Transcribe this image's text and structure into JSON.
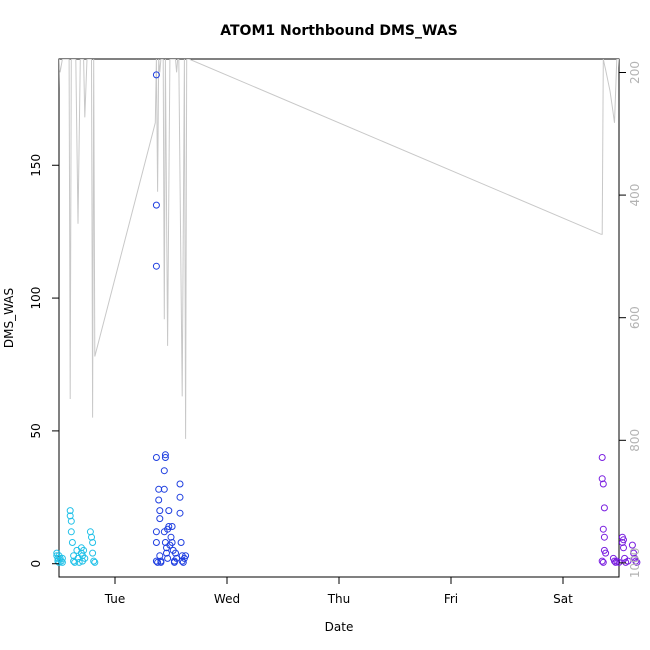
{
  "chart_data": {
    "type": "scatter",
    "title": "ATOM1 Northbound DMS_WAS",
    "xlabel": "Date",
    "ylabel": "DMS_WAS",
    "x_unit": "days",
    "xlim": [
      0.5,
      5.5
    ],
    "ylim": [
      -5,
      190
    ],
    "right_ylim": [
      1023,
      178
    ],
    "x_ticks": [
      {
        "pos": 1,
        "label": "Tue"
      },
      {
        "pos": 2,
        "label": "Wed"
      },
      {
        "pos": 3,
        "label": "Thu"
      },
      {
        "pos": 4,
        "label": "Fri"
      },
      {
        "pos": 5,
        "label": "Sat"
      }
    ],
    "y_ticks": [
      0,
      50,
      100,
      150
    ],
    "right_y_ticks": [
      200,
      400,
      600,
      800,
      1000
    ],
    "grid": false,
    "legend": "none",
    "series": [
      {
        "color": "#22c1e8",
        "points": [
          [
            0.48,
            4
          ],
          [
            0.48,
            3
          ],
          [
            0.49,
            2
          ],
          [
            0.49,
            1
          ],
          [
            0.5,
            0.5
          ],
          [
            0.5,
            3
          ],
          [
            0.51,
            2
          ],
          [
            0.52,
            1
          ],
          [
            0.53,
            0.5
          ],
          [
            0.53,
            2
          ],
          [
            0.6,
            20
          ],
          [
            0.6,
            18
          ],
          [
            0.61,
            16
          ],
          [
            0.61,
            12
          ],
          [
            0.62,
            8
          ],
          [
            0.63,
            3
          ],
          [
            0.63,
            1
          ],
          [
            0.64,
            0.5
          ],
          [
            0.66,
            5
          ],
          [
            0.67,
            2
          ],
          [
            0.68,
            0.5
          ],
          [
            0.7,
            6
          ],
          [
            0.7,
            4
          ],
          [
            0.71,
            3
          ],
          [
            0.71,
            1
          ],
          [
            0.72,
            5
          ],
          [
            0.73,
            2
          ],
          [
            0.78,
            12
          ],
          [
            0.79,
            10
          ],
          [
            0.8,
            8
          ],
          [
            0.8,
            4
          ],
          [
            0.81,
            1
          ],
          [
            0.82,
            0.5
          ]
        ]
      },
      {
        "color": "#1f3fe0",
        "points": [
          [
            1.37,
            184
          ],
          [
            1.37,
            135
          ],
          [
            1.37,
            112
          ],
          [
            1.37,
            40
          ],
          [
            1.37,
            12
          ],
          [
            1.37,
            8
          ],
          [
            1.37,
            1
          ],
          [
            1.38,
            0.5
          ],
          [
            1.39,
            28
          ],
          [
            1.39,
            24
          ],
          [
            1.4,
            20
          ],
          [
            1.4,
            17
          ],
          [
            1.4,
            3
          ],
          [
            1.41,
            0.5
          ],
          [
            1.41,
            1
          ],
          [
            1.45,
            40
          ],
          [
            1.45,
            41
          ],
          [
            1.44,
            35
          ],
          [
            1.44,
            28
          ],
          [
            1.44,
            12
          ],
          [
            1.45,
            8
          ],
          [
            1.46,
            6
          ],
          [
            1.46,
            4
          ],
          [
            1.47,
            2
          ],
          [
            1.47,
            13
          ],
          [
            1.48,
            20
          ],
          [
            1.48,
            14
          ],
          [
            1.49,
            7
          ],
          [
            1.5,
            10
          ],
          [
            1.51,
            14
          ],
          [
            1.51,
            8
          ],
          [
            1.52,
            5
          ],
          [
            1.53,
            1
          ],
          [
            1.53,
            0.5
          ],
          [
            1.54,
            4
          ],
          [
            1.55,
            2
          ],
          [
            1.58,
            30
          ],
          [
            1.58,
            25
          ],
          [
            1.58,
            19
          ],
          [
            1.59,
            8
          ],
          [
            1.6,
            3
          ],
          [
            1.6,
            1
          ],
          [
            1.61,
            0.5
          ],
          [
            1.62,
            2
          ],
          [
            1.63,
            3
          ]
        ]
      },
      {
        "color": "#7a1fe0",
        "points": [
          [
            5.35,
            40
          ],
          [
            5.35,
            32
          ],
          [
            5.36,
            30
          ],
          [
            5.37,
            21
          ],
          [
            5.36,
            13
          ],
          [
            5.37,
            10
          ],
          [
            5.37,
            5
          ],
          [
            5.38,
            4
          ],
          [
            5.35,
            1
          ],
          [
            5.36,
            0.5
          ],
          [
            5.45,
            2
          ],
          [
            5.46,
            1
          ],
          [
            5.47,
            0.5
          ],
          [
            5.48,
            1
          ],
          [
            5.5,
            0.5
          ],
          [
            5.53,
            10
          ],
          [
            5.53,
            8
          ],
          [
            5.54,
            9
          ],
          [
            5.54,
            6
          ],
          [
            5.55,
            2
          ],
          [
            5.56,
            0.5
          ],
          [
            5.58,
            1
          ],
          [
            5.62,
            7
          ],
          [
            5.63,
            4
          ],
          [
            5.64,
            2
          ],
          [
            5.65,
            1
          ],
          [
            5.66,
            0.5
          ]
        ]
      }
    ],
    "secondary_line": {
      "color": "#c8c8c8",
      "points": [
        [
          0.48,
          190
        ],
        [
          0.48,
          160
        ],
        [
          0.49,
          165
        ],
        [
          0.5,
          190
        ],
        [
          0.51,
          185
        ],
        [
          0.53,
          190
        ],
        [
          0.59,
          190
        ],
        [
          0.6,
          62
        ],
        [
          0.61,
          190
        ],
        [
          0.65,
          190
        ],
        [
          0.67,
          128
        ],
        [
          0.69,
          190
        ],
        [
          0.72,
          190
        ],
        [
          0.73,
          168
        ],
        [
          0.75,
          190
        ],
        [
          0.79,
          190
        ],
        [
          0.8,
          55
        ],
        [
          0.81,
          190
        ],
        [
          0.82,
          78
        ],
        [
          1.36,
          166
        ],
        [
          1.37,
          190
        ],
        [
          1.38,
          140
        ],
        [
          1.39,
          190
        ],
        [
          1.4,
          185
        ],
        [
          1.41,
          190
        ],
        [
          1.43,
          190
        ],
        [
          1.44,
          92
        ],
        [
          1.45,
          190
        ],
        [
          1.47,
          82
        ],
        [
          1.49,
          190
        ],
        [
          1.52,
          190
        ],
        [
          1.54,
          190
        ],
        [
          1.55,
          185
        ],
        [
          1.56,
          190
        ],
        [
          1.57,
          190
        ],
        [
          1.6,
          63
        ],
        [
          1.62,
          190
        ],
        [
          1.63,
          47
        ],
        [
          1.64,
          190
        ],
        [
          1.66,
          190
        ],
        [
          5.34,
          124
        ],
        [
          5.35,
          124
        ],
        [
          5.36,
          190
        ],
        [
          5.37,
          188
        ],
        [
          5.38,
          186
        ],
        [
          5.4,
          182
        ],
        [
          5.42,
          178
        ],
        [
          5.44,
          172
        ],
        [
          5.46,
          166
        ],
        [
          5.48,
          190
        ],
        [
          5.5,
          190
        ],
        [
          5.52,
          175
        ],
        [
          5.54,
          190
        ],
        [
          5.57,
          190
        ],
        [
          5.58,
          140
        ],
        [
          5.6,
          190
        ],
        [
          5.63,
          190
        ],
        [
          5.65,
          108
        ],
        [
          5.66,
          152
        ],
        [
          5.67,
          152
        ]
      ]
    }
  }
}
